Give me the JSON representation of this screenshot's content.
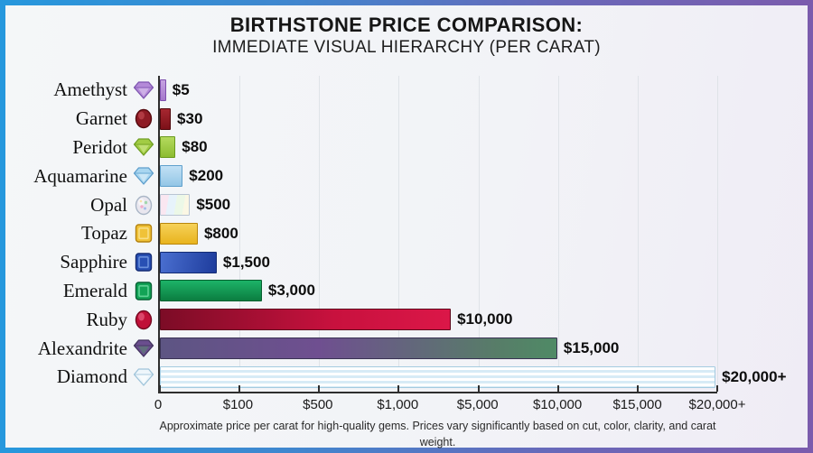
{
  "header": {
    "title": "BIRTHSTONE PRICE COMPARISON:",
    "subtitle": "IMMEDIATE VISUAL HIERARCHY (PER CARAT)"
  },
  "footer": {
    "note": "Approximate price per carat for high-quality gems. Prices vary significantly based on cut, color, clarity, and carat weight."
  },
  "colors": {
    "frame_gradient_start": "#2698dd",
    "frame_gradient_end": "#7b5cad",
    "background": "#f2f3f7",
    "axis": "#2e2e2e",
    "gridline": "#dfe3e8"
  },
  "chart_data": {
    "type": "bar",
    "orientation": "horizontal",
    "title": "BIRTHSTONE PRICE COMPARISON: IMMEDIATE VISUAL HIERARCHY (PER CARAT)",
    "xlabel": "",
    "ylabel": "",
    "grid": true,
    "legend": "none",
    "x_ticks": [
      "0",
      "$100",
      "$500",
      "$1,000",
      "$5,000",
      "$10,000",
      "$15,000",
      "$20,000+"
    ],
    "x_axis_note": "tick labels evenly spaced (non-linear value axis)",
    "categories": [
      "Amethyst",
      "Garnet",
      "Peridot",
      "Aquamarine",
      "Opal",
      "Topaz",
      "Sapphire",
      "Emerald",
      "Ruby",
      "Alexandrite",
      "Diamond"
    ],
    "values": [
      5,
      30,
      80,
      200,
      500,
      800,
      1500,
      3000,
      10000,
      15000,
      20000
    ],
    "value_labels": [
      "$5",
      "$30",
      "$80",
      "$200",
      "$500",
      "$800",
      "$1,500",
      "$3,000",
      "$10,000",
      "$15,000",
      "$20,000+"
    ],
    "rows": [
      {
        "label": "Amethyst",
        "value_label": "$5",
        "pct": 1.1,
        "bar_css": "linear-gradient(180deg,#c6a2e2,#a578cc)",
        "bar_border": "#7e4fae",
        "gem": {
          "shape": "diamond",
          "main": "#b48ad8",
          "dark": "#7e55b0",
          "light": "#e2d0f2"
        }
      },
      {
        "label": "Garnet",
        "value_label": "$30",
        "pct": 1.95,
        "bar_css": "linear-gradient(180deg,#a62730,#7c1018)",
        "bar_border": "#4e080c",
        "gem": {
          "shape": "oval",
          "main": "#8e1b24",
          "dark": "#55090e",
          "light": "#c85056"
        }
      },
      {
        "label": "Peridot",
        "value_label": "$80",
        "pct": 2.8,
        "bar_css": "linear-gradient(180deg,#b4da5e,#8cbc30)",
        "bar_border": "#6a9a1e",
        "gem": {
          "shape": "diamond",
          "main": "#a2cc44",
          "dark": "#6f9e24",
          "light": "#d8ee9c"
        }
      },
      {
        "label": "Aquamarine",
        "value_label": "$200",
        "pct": 4.1,
        "bar_css": "linear-gradient(180deg,#c2e1f5,#93c6e6)",
        "bar_border": "#5fa0cc",
        "gem": {
          "shape": "diamond",
          "main": "#a8d6f0",
          "dark": "#5e9ecc",
          "light": "#e6f4fc"
        }
      },
      {
        "label": "Opal",
        "value_label": "$500",
        "pct": 5.4,
        "bar_css": "linear-gradient(rgba(255,255,255,.5),rgba(255,255,255,.5)), repeating-linear-gradient(100deg,#f4cfe2 0 9px,#cfe6f6 9px 18px,#d9f0cf 18px 27px,#f6eec9 27px 36px,#e3d6f2 36px 45px)",
        "bar_border": "#b9c4d2",
        "gem": {
          "shape": "oval",
          "main": "#e9e7ef",
          "dark": "#a9b6c6",
          "light": "#ffffff",
          "opal": true
        }
      },
      {
        "label": "Topaz",
        "value_label": "$800",
        "pct": 6.8,
        "bar_css": "linear-gradient(180deg,#f6d158,#e8b41e)",
        "bar_border": "#b8860c",
        "gem": {
          "shape": "emerald",
          "main": "#f0c238",
          "dark": "#b4820e",
          "light": "#fae598"
        }
      },
      {
        "label": "Sapphire",
        "value_label": "$1,500",
        "pct": 10.2,
        "bar_css": "linear-gradient(100deg,#4a6fd0,#1e3c9c)",
        "bar_border": "#142c74",
        "gem": {
          "shape": "emerald",
          "main": "#2850b4",
          "dark": "#142c74",
          "light": "#7ba0e6"
        }
      },
      {
        "label": "Emerald",
        "value_label": "$3,000",
        "pct": 18.3,
        "bar_css": "linear-gradient(180deg,#1db368,#0b7d40)",
        "bar_border": "#07602f",
        "gem": {
          "shape": "emerald",
          "main": "#12a356",
          "dark": "#066034",
          "light": "#72dca4"
        }
      },
      {
        "label": "Ruby",
        "value_label": "$10,000",
        "pct": 52.2,
        "bar_css": "linear-gradient(90deg,#7c0c26,#c8113e 60%,#db1748)",
        "bar_border": "#5e081c",
        "gem": {
          "shape": "oval",
          "main": "#c01038",
          "dark": "#740820",
          "light": "#ee6a8c"
        }
      },
      {
        "label": "Alexandrite",
        "value_label": "$15,000",
        "pct": 71.3,
        "bar_css": "linear-gradient(90deg,#5d5583,#6f4f90 40%,#577d68 85%,#4f8a66)",
        "bar_border": "#3a3354",
        "gem": {
          "shape": "diamond",
          "main": "#6a4e8e",
          "dark": "#41335e",
          "light": "#5a8a70"
        }
      },
      {
        "label": "Diamond",
        "value_label": "$20,000+",
        "pct": 99.7,
        "bar_css": "repeating-linear-gradient(180deg,#ffffff 0 3px,#d7ebf6 3px 6px)",
        "bar_border": "#a4cbe0",
        "gem": {
          "shape": "diamond",
          "main": "#eef6fb",
          "dark": "#9fc4da",
          "light": "#ffffff"
        }
      }
    ]
  }
}
